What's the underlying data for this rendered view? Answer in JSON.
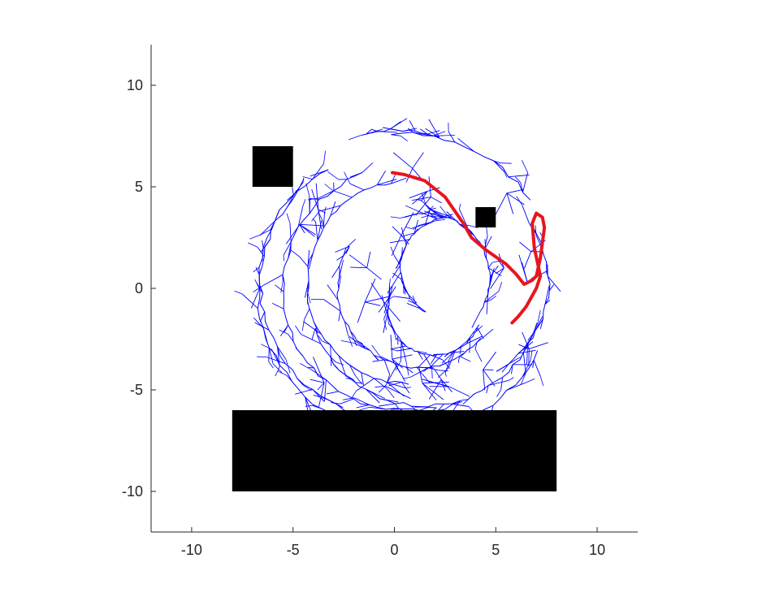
{
  "chart_data": {
    "type": "line",
    "title": "",
    "xlabel": "",
    "ylabel": "",
    "xlim": [
      -12,
      12
    ],
    "ylim": [
      -12,
      12
    ],
    "x_ticks": [
      -10,
      -5,
      0,
      5,
      10
    ],
    "y_ticks": [
      -10,
      -5,
      0,
      5,
      10
    ],
    "x_tick_labels": [
      "-10",
      "-5",
      "0",
      "5",
      "10"
    ],
    "y_tick_labels": [
      "-10",
      "-5",
      "0",
      "5",
      "10"
    ],
    "grid": false,
    "aspect": "equal",
    "colors": {
      "tree": "#0000ff",
      "path": "#e8151b",
      "obstacle": "#000000",
      "axis": "#262626"
    },
    "obstacles": [
      {
        "x": [
          -7,
          -5
        ],
        "y": [
          5,
          7
        ]
      },
      {
        "x": [
          4,
          5
        ],
        "y": [
          3,
          4
        ]
      },
      {
        "x": [
          -8,
          8
        ],
        "y": [
          -10,
          -6
        ]
      }
    ],
    "path": {
      "x": [
        -0.1,
        0.5,
        1.5,
        2.5,
        3.4,
        3.8,
        4.5,
        5.5,
        6.0,
        6.4,
        6.8,
        7.0,
        7.2,
        7.4,
        7.3,
        7.0,
        6.8,
        6.9,
        7.2,
        7.0,
        6.5,
        6.1,
        5.8
      ],
      "y": [
        5.7,
        5.6,
        5.3,
        4.5,
        3.2,
        2.5,
        1.9,
        1.2,
        0.7,
        0.2,
        0.4,
        0.6,
        1.5,
        3.0,
        3.5,
        3.7,
        3.2,
        2.0,
        0.6,
        0.0,
        -0.9,
        -1.4,
        -1.7
      ]
    },
    "tree_arcs": [
      {
        "cx": -0.2,
        "cy": 0.8,
        "r": 7.0,
        "a0": 100,
        "a1": 70
      },
      {
        "cx": 0.5,
        "cy": 0.0,
        "r": 7.6,
        "a0": 95,
        "a1": 35
      },
      {
        "cx": 0.5,
        "cy": 0.0,
        "r": 7.2,
        "a0": 140,
        "a1": 335
      },
      {
        "cx": 0.0,
        "cy": 0.2,
        "r": 6.6,
        "a0": 120,
        "a1": 300
      },
      {
        "cx": 0.5,
        "cy": 0.0,
        "r": 6.0,
        "a0": 110,
        "a1": 285
      },
      {
        "cx": 0.7,
        "cy": 0.3,
        "r": 5.0,
        "a0": 100,
        "a1": 270
      },
      {
        "cx": 1.2,
        "cy": 0.1,
        "r": 4.0,
        "a0": 150,
        "a1": 320
      },
      {
        "cx": 1.5,
        "cy": 0.0,
        "r": 5.8,
        "a0": 200,
        "a1": 335
      },
      {
        "cx": 2.5,
        "cy": 0.3,
        "r": 5.1,
        "a0": 300,
        "a1": 395
      },
      {
        "cx": 1.5,
        "cy": 0.5,
        "r": 3.2,
        "a0": 330,
        "a1": 460
      },
      {
        "cx": 2.8,
        "cy": 1.0,
        "r": 2.5,
        "a0": 90,
        "a1": 240
      },
      {
        "cx": 2.0,
        "cy": -1.0,
        "r": 2.3,
        "a0": 160,
        "a1": 340
      }
    ]
  }
}
